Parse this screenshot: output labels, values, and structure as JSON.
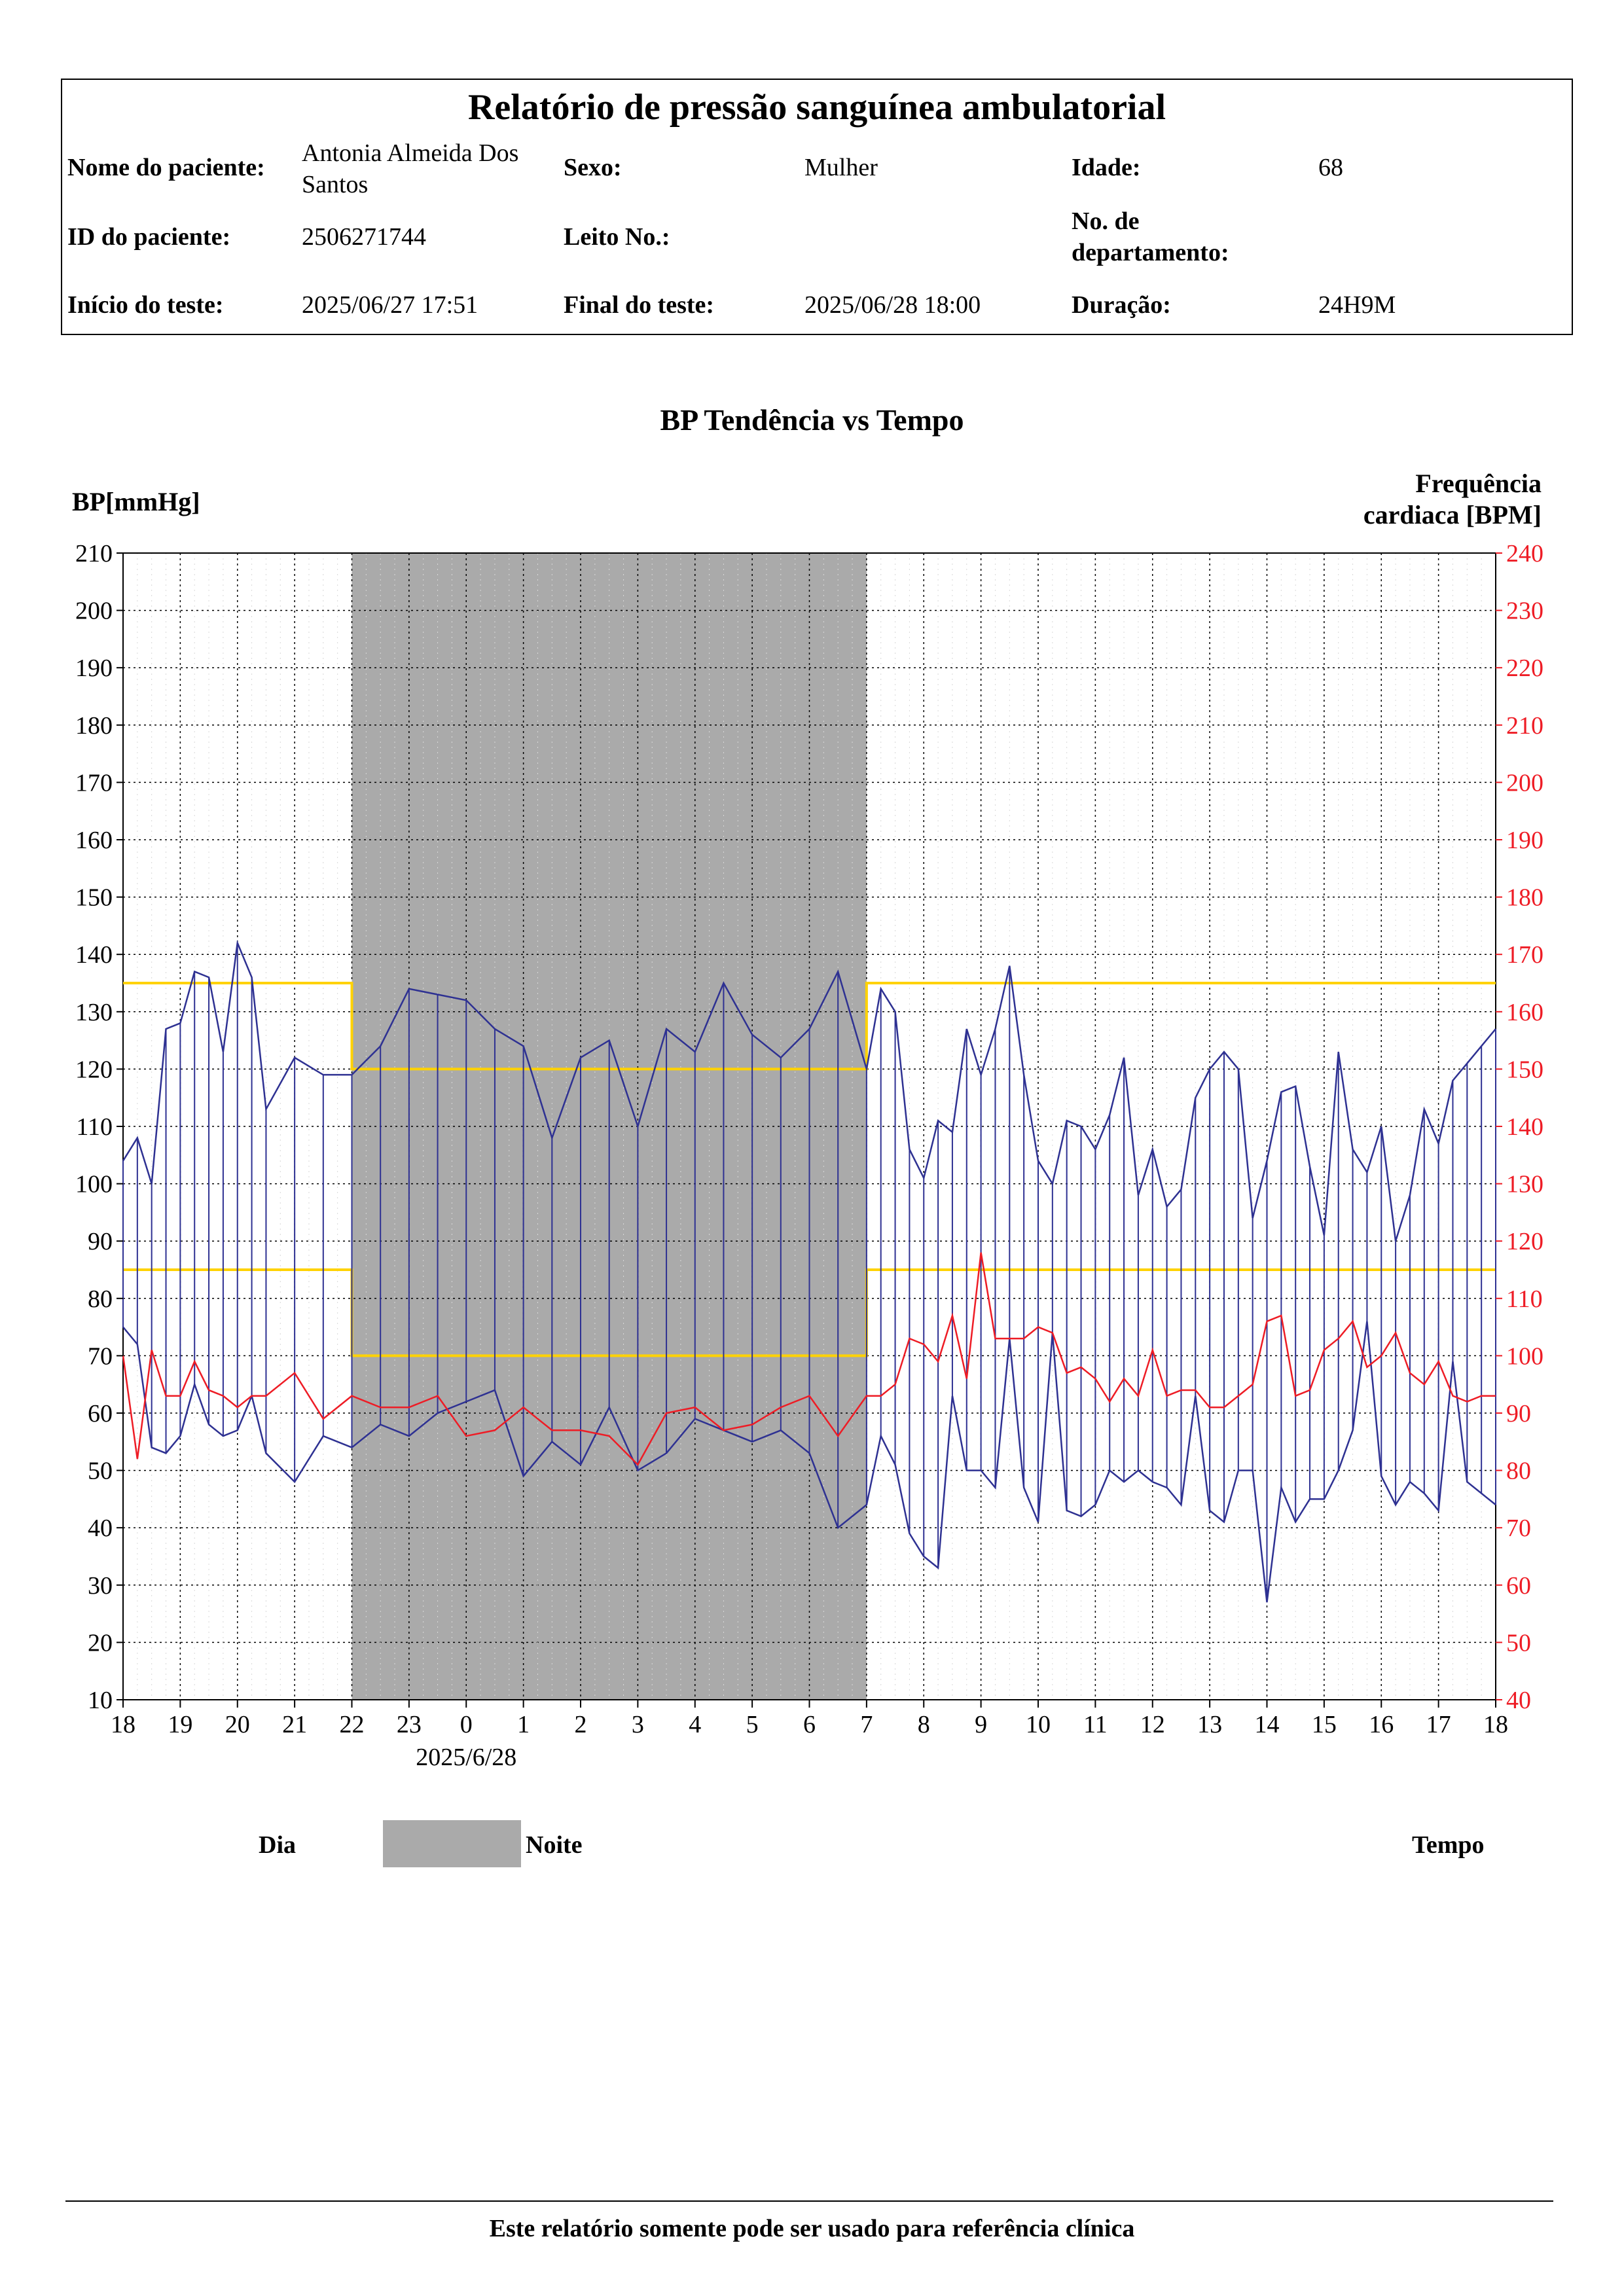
{
  "report": {
    "title": "Relatório de pressão sanguínea ambulatorial",
    "patient_name_label": "Nome do paciente:",
    "patient_name": "Antonia Almeida Dos Santos",
    "sex_label": "Sexo:",
    "sex": "Mulher",
    "age_label": "Idade:",
    "age": "68",
    "patient_id_label": "ID do paciente:",
    "patient_id": "2506271744",
    "bed_label": "Leito No.:",
    "bed": "",
    "department_label": "No. de departamento:",
    "department": "",
    "start_label": "Início do teste:",
    "start": "2025/06/27 17:51",
    "end_label": "Final do teste:",
    "end": "2025/06/28 18:00",
    "duration_label": "Duração:",
    "duration": "24H9M"
  },
  "chart_data": {
    "type": "line",
    "title": "BP Tendência vs Tempo",
    "ylabel": "BP[mmHg]",
    "y2label": "Frequência cardiaca [BPM]",
    "date_label": "2025/6/28",
    "ylim": [
      10,
      210
    ],
    "y2lim": [
      40,
      240
    ],
    "yticks": [
      10,
      20,
      30,
      40,
      50,
      60,
      70,
      80,
      90,
      100,
      110,
      120,
      130,
      140,
      150,
      160,
      170,
      180,
      190,
      200,
      210
    ],
    "y2ticks": [
      40,
      50,
      60,
      70,
      80,
      90,
      100,
      110,
      120,
      130,
      140,
      150,
      160,
      170,
      180,
      190,
      200,
      210,
      220,
      230,
      240
    ],
    "xticks": [
      "18",
      "19",
      "20",
      "21",
      "22",
      "23",
      "0",
      "1",
      "2",
      "3",
      "4",
      "5",
      "6",
      "7",
      "8",
      "9",
      "10",
      "11",
      "12",
      "13",
      "14",
      "15",
      "16",
      "17",
      "18"
    ],
    "x_range_hours": [
      0,
      24
    ],
    "grid": true,
    "night_period_hours": [
      4,
      13
    ],
    "thresholds": {
      "day_systolic": 135,
      "day_diastolic": 85,
      "night_systolic": 120,
      "night_diastolic": 70
    },
    "series": [
      {
        "name": "SYS",
        "color": "#2e3192",
        "x": [
          0.0,
          0.25,
          0.5,
          0.75,
          1.0,
          1.25,
          1.5,
          1.75,
          2.0,
          2.25,
          2.5,
          3.0,
          3.5,
          4.0,
          4.5,
          5.0,
          5.5,
          6.0,
          6.5,
          7.0,
          7.5,
          8.0,
          8.5,
          9.0,
          9.5,
          10.0,
          10.5,
          11.0,
          11.5,
          12.0,
          12.5,
          13.0,
          13.25,
          13.5,
          13.75,
          14.0,
          14.25,
          14.5,
          14.75,
          15.0,
          15.25,
          15.5,
          15.75,
          16.0,
          16.25,
          16.5,
          16.75,
          17.0,
          17.25,
          17.5,
          17.75,
          18.0,
          18.25,
          18.5,
          18.75,
          19.0,
          19.25,
          19.5,
          19.75,
          20.0,
          20.25,
          20.5,
          20.75,
          21.0,
          21.25,
          21.5,
          21.75,
          22.0,
          22.25,
          22.5,
          22.75,
          23.0,
          23.25,
          23.5,
          23.75,
          24.0
        ],
        "values": [
          104,
          108,
          100,
          127,
          128,
          137,
          136,
          123,
          142,
          136,
          113,
          122,
          119,
          119,
          124,
          134,
          133,
          132,
          127,
          124,
          108,
          122,
          125,
          110,
          127,
          123,
          135,
          126,
          122,
          127,
          137,
          120,
          134,
          130,
          106,
          101,
          111,
          109,
          127,
          119,
          127,
          138,
          119,
          104,
          100,
          111,
          110,
          106,
          112,
          122,
          98,
          106,
          96,
          99,
          115,
          120,
          123,
          120,
          94,
          104,
          116,
          117,
          103,
          91,
          123,
          106,
          102,
          110,
          90,
          98,
          113,
          107,
          118,
          121,
          124,
          127
        ]
      },
      {
        "name": "DIA",
        "color": "#2e3192",
        "x": [
          0.0,
          0.25,
          0.5,
          0.75,
          1.0,
          1.25,
          1.5,
          1.75,
          2.0,
          2.25,
          2.5,
          3.0,
          3.5,
          4.0,
          4.5,
          5.0,
          5.5,
          6.0,
          6.5,
          7.0,
          7.5,
          8.0,
          8.5,
          9.0,
          9.5,
          10.0,
          10.5,
          11.0,
          11.5,
          12.0,
          12.5,
          13.0,
          13.25,
          13.5,
          13.75,
          14.0,
          14.25,
          14.5,
          14.75,
          15.0,
          15.25,
          15.5,
          15.75,
          16.0,
          16.25,
          16.5,
          16.75,
          17.0,
          17.25,
          17.5,
          17.75,
          18.0,
          18.25,
          18.5,
          18.75,
          19.0,
          19.25,
          19.5,
          19.75,
          20.0,
          20.25,
          20.5,
          20.75,
          21.0,
          21.25,
          21.5,
          21.75,
          22.0,
          22.25,
          22.5,
          22.75,
          23.0,
          23.25,
          23.5,
          23.75,
          24.0
        ],
        "values": [
          75,
          72,
          54,
          53,
          56,
          65,
          58,
          56,
          57,
          63,
          53,
          48,
          56,
          54,
          58,
          56,
          60,
          62,
          64,
          49,
          55,
          51,
          61,
          50,
          53,
          59,
          57,
          55,
          57,
          53,
          40,
          44,
          56,
          51,
          39,
          35,
          33,
          63,
          50,
          50,
          47,
          73,
          47,
          41,
          74,
          43,
          42,
          44,
          50,
          48,
          50,
          48,
          47,
          44,
          63,
          43,
          41,
          50,
          50,
          27,
          47,
          41,
          45,
          45,
          50,
          57,
          76,
          49,
          44,
          48,
          46,
          43,
          69,
          48,
          46,
          44
        ]
      },
      {
        "name": "HR",
        "color": "#ee1c25",
        "x": [
          0.0,
          0.25,
          0.5,
          0.75,
          1.0,
          1.25,
          1.5,
          1.75,
          2.0,
          2.25,
          2.5,
          3.0,
          3.5,
          4.0,
          4.5,
          5.0,
          5.5,
          6.0,
          6.5,
          7.0,
          7.5,
          8.0,
          8.5,
          9.0,
          9.5,
          10.0,
          10.5,
          11.0,
          11.5,
          12.0,
          12.5,
          13.0,
          13.25,
          13.5,
          13.75,
          14.0,
          14.25,
          14.5,
          14.75,
          15.0,
          15.25,
          15.5,
          15.75,
          16.0,
          16.25,
          16.5,
          16.75,
          17.0,
          17.25,
          17.5,
          17.75,
          18.0,
          18.25,
          18.5,
          18.75,
          19.0,
          19.25,
          19.5,
          19.75,
          20.0,
          20.25,
          20.5,
          20.75,
          21.0,
          21.25,
          21.5,
          21.75,
          22.0,
          22.25,
          22.5,
          22.75,
          23.0,
          23.25,
          23.5,
          23.75,
          24.0
        ],
        "values": [
          100,
          82,
          101,
          93,
          93,
          99,
          94,
          93,
          91,
          93,
          93,
          97,
          89,
          93,
          91,
          91,
          93,
          86,
          87,
          91,
          87,
          87,
          86,
          81,
          90,
          91,
          87,
          88,
          91,
          93,
          86,
          93,
          93,
          95,
          103,
          102,
          99,
          107,
          96,
          118,
          103,
          103,
          103,
          105,
          104,
          97,
          98,
          96,
          92,
          96,
          93,
          101,
          93,
          94,
          94,
          91,
          91,
          93,
          95,
          106,
          107,
          93,
          94,
          101,
          103,
          106,
          98,
          100,
          104,
          97,
          95,
          99,
          93,
          92,
          93,
          93
        ]
      }
    ],
    "legend": [
      "Dia",
      "Noite"
    ],
    "xlabel": "Tempo"
  },
  "footer": {
    "text": "Este relatório somente pode ser usado para referência clínica"
  }
}
